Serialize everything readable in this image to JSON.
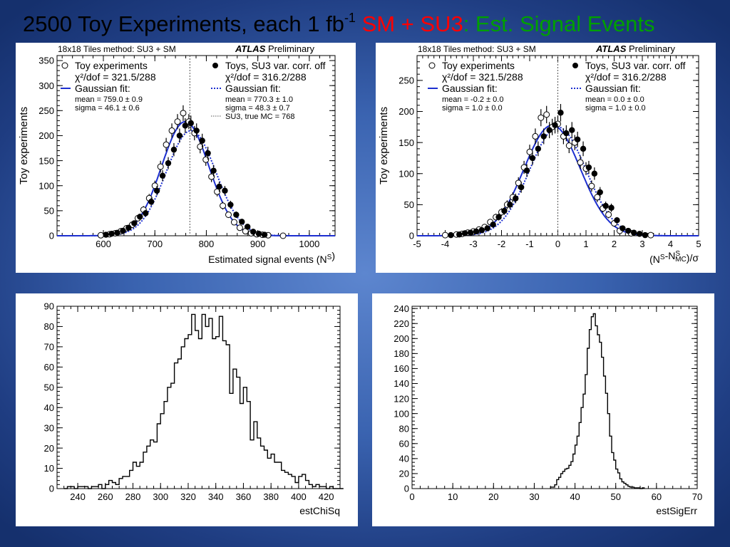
{
  "title": {
    "part1": "2500 Toy Experiments, each 1 fb",
    "exponent": "-1",
    "part2": " SM + SU3",
    "part3": ": Est. Signal Events",
    "colors": {
      "black": "#000000",
      "red": "#ff0000",
      "green": "#00a000"
    }
  },
  "chart_data": [
    {
      "type": "scatter",
      "header_left": "18x18 Tiles method: SU3 + SM",
      "header_brand": "ATLAS",
      "header_right": "Preliminary",
      "xlabel": "Estimated signal events (N^S)",
      "ylabel": "Toy experiments",
      "xlim": [
        510,
        1050
      ],
      "ylim": [
        0,
        360
      ],
      "xticks": [
        600,
        700,
        800,
        900,
        1000
      ],
      "yticks": [
        0,
        50,
        100,
        150,
        200,
        250,
        300,
        350
      ],
      "vline": 768,
      "legend_left": [
        {
          "label": "Toy experiments",
          "marker": "open-circle"
        },
        {
          "label": "χ²/dof = 321.5/288",
          "marker": "none"
        },
        {
          "label": "Gaussian fit:",
          "marker": "solid-line"
        },
        {
          "label": "mean  = 759.0 ± 0.9",
          "marker": "small"
        },
        {
          "label": "sigma = 46.1 ± 0.6",
          "marker": "small"
        }
      ],
      "legend_right": [
        {
          "label": "Toys, SU3 var. corr. off",
          "marker": "filled-circle"
        },
        {
          "label": "χ²/dof = 316.2/288",
          "marker": "none"
        },
        {
          "label": "Gaussian fit:",
          "marker": "dotted-line"
        },
        {
          "label": "mean  = 770.3 ± 1.0",
          "marker": "small"
        },
        {
          "label": "sigma = 48.3 ± 0.7",
          "marker": "small"
        },
        {
          "label": "SU3, true MC = 768",
          "marker": "vline"
        }
      ],
      "series": [
        {
          "name": "Toy experiments",
          "style": "open",
          "fit": {
            "mean": 759.0,
            "sigma": 46.1,
            "amp": 228
          },
          "x": [
            595,
            612,
            623,
            634,
            645,
            656,
            667,
            678,
            689,
            700,
            711,
            722,
            733,
            744,
            755,
            766,
            777,
            788,
            799,
            810,
            821,
            832,
            843,
            854,
            865,
            876,
            887,
            898,
            909,
            920,
            949
          ],
          "y": [
            1,
            3,
            5,
            9,
            15,
            22,
            35,
            52,
            75,
            100,
            138,
            182,
            210,
            228,
            245,
            228,
            205,
            178,
            152,
            118,
            88,
            60,
            42,
            27,
            16,
            9,
            5,
            3,
            2,
            1,
            0
          ]
        },
        {
          "name": "Toys, SU3 var. corr. off",
          "style": "filled",
          "fit": {
            "mean": 770.3,
            "sigma": 48.3,
            "amp": 210
          },
          "x": [
            605,
            616,
            627,
            638,
            649,
            660,
            671,
            682,
            693,
            704,
            715,
            726,
            737,
            748,
            759,
            770,
            781,
            792,
            803,
            814,
            825,
            836,
            847,
            858,
            869,
            880,
            891,
            902,
            913
          ],
          "y": [
            2,
            4,
            6,
            10,
            16,
            25,
            38,
            45,
            68,
            90,
            120,
            145,
            172,
            200,
            220,
            225,
            210,
            190,
            165,
            130,
            98,
            90,
            62,
            42,
            28,
            18,
            8,
            4,
            2
          ]
        }
      ]
    },
    {
      "type": "scatter",
      "header_left": "18x18 Tiles method: SU3 + SM",
      "header_brand": "ATLAS",
      "header_right": "Preliminary",
      "xlabel": "(N^S-N^S_MC)/σ",
      "ylabel": "Toy experiments",
      "xlim": [
        -5,
        5
      ],
      "ylim": [
        0,
        290
      ],
      "xticks": [
        -5,
        -4,
        -3,
        -2,
        -1,
        0,
        1,
        2,
        3,
        4,
        5
      ],
      "yticks": [
        0,
        50,
        100,
        150,
        200,
        250
      ],
      "vline": 0,
      "legend_left": [
        {
          "label": "Toy experiments",
          "marker": "open-circle"
        },
        {
          "label": "χ²/dof = 321.5/288",
          "marker": "none"
        },
        {
          "label": "Gaussian fit:",
          "marker": "solid-line"
        },
        {
          "label": "mean  = -0.2 ± 0.0",
          "marker": "small"
        },
        {
          "label": "sigma = 1.0 ± 0.0",
          "marker": "small"
        }
      ],
      "legend_right": [
        {
          "label": "Toys, SU3 var. corr. off",
          "marker": "filled-circle"
        },
        {
          "label": "χ²/dof = 316.2/288",
          "marker": "none"
        },
        {
          "label": "Gaussian fit:",
          "marker": "dotted-line"
        },
        {
          "label": "mean  = 0.0 ± 0.0",
          "marker": "small"
        },
        {
          "label": "sigma = 1.0 ± 0.0",
          "marker": "small"
        }
      ],
      "series": [
        {
          "name": "Toy experiments",
          "style": "open",
          "fit": {
            "mean": -0.2,
            "sigma": 1.0,
            "amp": 178
          },
          "x": [
            -4.0,
            -3.6,
            -3.4,
            -3.2,
            -3.0,
            -2.8,
            -2.6,
            -2.4,
            -2.2,
            -2.0,
            -1.8,
            -1.6,
            -1.4,
            -1.2,
            -1.0,
            -0.8,
            -0.6,
            -0.4,
            -0.2,
            0.0,
            0.2,
            0.4,
            0.6,
            0.8,
            1.0,
            1.2,
            1.4,
            1.6,
            1.8,
            2.0,
            2.2,
            2.6,
            3.3
          ],
          "y": [
            1,
            2,
            3,
            5,
            7,
            10,
            14,
            22,
            30,
            38,
            50,
            62,
            85,
            110,
            135,
            160,
            190,
            195,
            175,
            180,
            160,
            145,
            150,
            118,
            108,
            80,
            62,
            44,
            34,
            20,
            8,
            4,
            1
          ]
        },
        {
          "name": "Toys, SU3 var. corr. off",
          "style": "filled",
          "fit": {
            "mean": 0.0,
            "sigma": 1.0,
            "amp": 175
          },
          "x": [
            -3.8,
            -3.5,
            -3.3,
            -3.1,
            -2.9,
            -2.7,
            -2.5,
            -2.3,
            -2.1,
            -1.9,
            -1.7,
            -1.5,
            -1.3,
            -1.1,
            -0.9,
            -0.7,
            -0.5,
            -0.3,
            -0.1,
            0.1,
            0.3,
            0.5,
            0.7,
            0.9,
            1.1,
            1.3,
            1.5,
            1.7,
            1.9,
            2.1,
            2.3,
            2.5,
            2.7,
            2.9,
            3.1
          ],
          "y": [
            1,
            2,
            4,
            5,
            7,
            9,
            12,
            18,
            30,
            40,
            50,
            60,
            78,
            105,
            125,
            140,
            160,
            170,
            178,
            198,
            165,
            170,
            155,
            140,
            110,
            100,
            70,
            48,
            45,
            25,
            12,
            8,
            5,
            3,
            1
          ]
        }
      ]
    },
    {
      "type": "bar",
      "histogram": true,
      "xlabel": "estChiSq",
      "ylabel": "",
      "xlim": [
        225,
        430
      ],
      "ylim": [
        0,
        90
      ],
      "xticks": [
        240,
        260,
        280,
        300,
        320,
        340,
        360,
        380,
        400,
        420
      ],
      "yticks": [
        0,
        10,
        20,
        30,
        40,
        50,
        60,
        70,
        80,
        90
      ],
      "bin_start": 230,
      "bin_width": 2.5,
      "values": [
        0,
        1,
        1,
        0,
        1,
        1,
        1,
        0,
        1,
        1,
        2,
        0,
        2,
        4,
        3,
        2,
        5,
        6,
        6,
        9,
        13,
        11,
        13,
        18,
        21,
        24,
        23,
        32,
        37,
        43,
        50,
        52,
        62,
        64,
        70,
        74,
        76,
        86,
        78,
        74,
        86,
        80,
        84,
        74,
        75,
        85,
        73,
        71,
        47,
        59,
        55,
        42,
        50,
        43,
        24,
        33,
        25,
        21,
        19,
        15,
        17,
        13,
        13,
        9,
        8,
        7,
        6,
        3,
        6,
        7,
        4,
        2,
        1,
        2,
        1,
        1,
        0,
        1,
        0,
        0,
        0
      ]
    },
    {
      "type": "bar",
      "histogram": true,
      "xlabel": "estSigErr",
      "ylabel": "",
      "xlim": [
        0,
        70
      ],
      "ylim": [
        0,
        243
      ],
      "xticks": [
        0,
        10,
        20,
        30,
        40,
        50,
        60,
        70
      ],
      "yticks": [
        0,
        20,
        40,
        60,
        80,
        100,
        120,
        140,
        160,
        180,
        200,
        220,
        240
      ],
      "bin_start": 34,
      "bin_width": 0.5,
      "values": [
        2,
        2,
        5,
        12,
        15,
        20,
        23,
        26,
        27,
        31,
        36,
        46,
        58,
        70,
        88,
        108,
        126,
        152,
        187,
        212,
        229,
        233,
        217,
        205,
        195,
        175,
        150,
        127,
        100,
        70,
        48,
        38,
        26,
        21,
        13,
        9,
        7,
        5,
        3,
        2,
        2,
        1,
        1,
        1,
        0,
        1
      ]
    }
  ]
}
